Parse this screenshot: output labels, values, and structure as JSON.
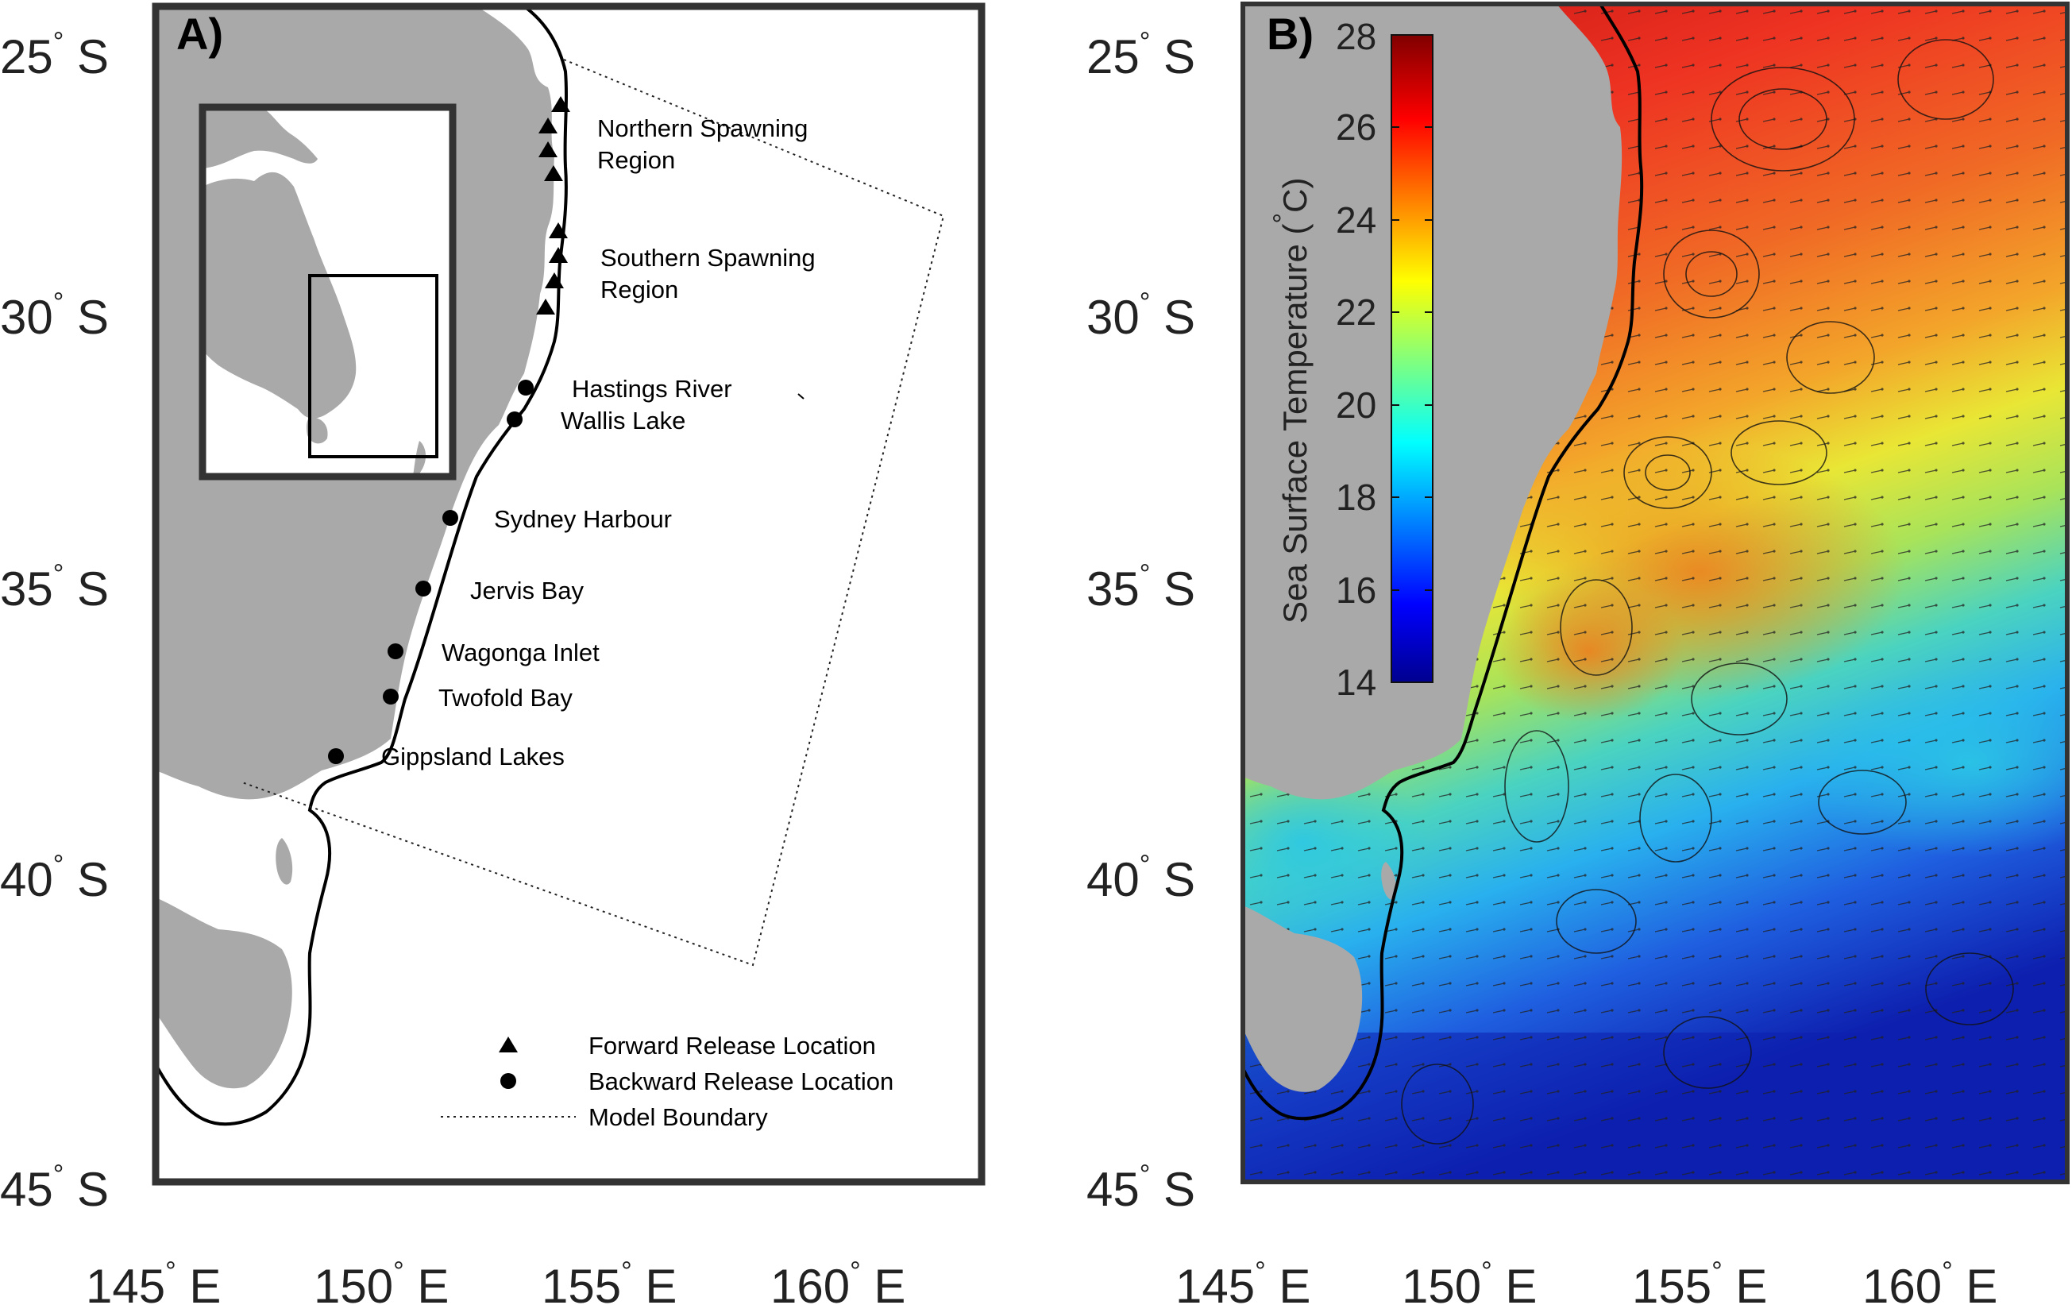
{
  "panel_a": {
    "label": "A)",
    "lat_ticks": [
      "25",
      "30",
      "35",
      "40",
      "45"
    ],
    "lat_suffix": "S",
    "lon_ticks": [
      "145",
      "150",
      "155",
      "160"
    ],
    "lon_suffix": "E",
    "locations": [
      {
        "name": "Northern Spawning",
        "name2": "Region",
        "type": "forward"
      },
      {
        "name": "Southern Spawning",
        "name2": "Region",
        "type": "forward"
      },
      {
        "name": "Hastings River",
        "type": "backward"
      },
      {
        "name": "Wallis Lake",
        "type": "backward"
      },
      {
        "name": "Sydney Harbour",
        "type": "backward"
      },
      {
        "name": "Jervis Bay",
        "type": "backward"
      },
      {
        "name": "Wagonga Inlet",
        "type": "backward"
      },
      {
        "name": "Twofold Bay",
        "type": "backward"
      },
      {
        "name": "Gippsland Lakes",
        "type": "backward"
      }
    ],
    "legend": {
      "forward": "Forward Release Location",
      "backward": "Backward Release Location",
      "boundary": "Model Boundary"
    },
    "colors": {
      "land": "#a9a9a9",
      "frame": "#333333",
      "coast": "#000000"
    }
  },
  "panel_b": {
    "label": "B)",
    "lat_ticks": [
      "25",
      "30",
      "35",
      "40",
      "45"
    ],
    "lat_suffix": "S",
    "lon_ticks": [
      "145",
      "150",
      "155",
      "160"
    ],
    "lon_suffix": "E",
    "colorbar": {
      "title": "Sea Surface Temperature (°C)",
      "title_main": "Sea Surface Temperature (",
      "title_unit": "C)",
      "min": 14,
      "max": 28,
      "ticks": [
        "14",
        "16",
        "18",
        "20",
        "22",
        "24",
        "26",
        "28"
      ],
      "colormap": "jet"
    },
    "colors": {
      "land": "#a9a9a9",
      "warm": "#e0251c",
      "cold": "#0a1fb0"
    }
  }
}
